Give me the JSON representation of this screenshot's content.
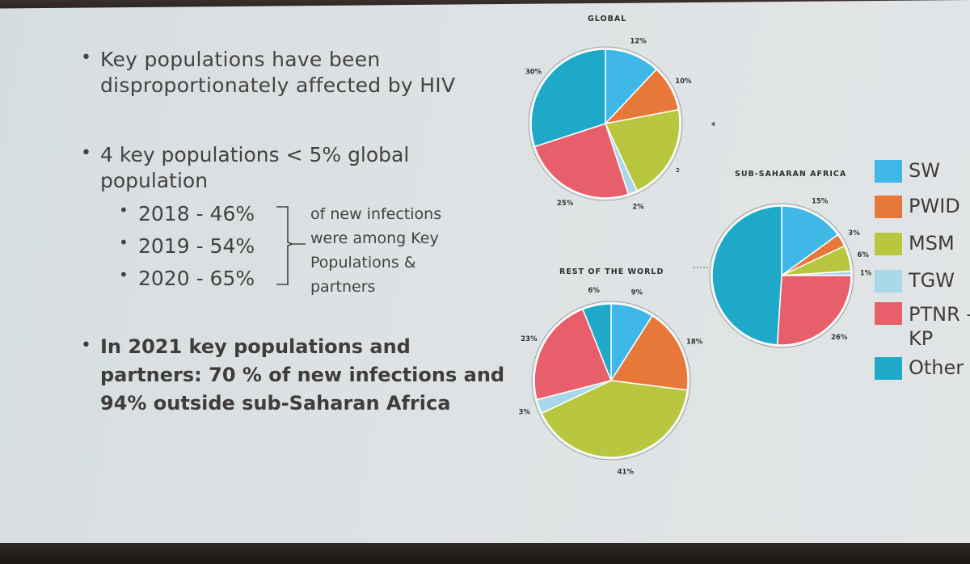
{
  "bullets": [
    {
      "lines": [
        "Key populations have been",
        "disproportionately affected by HIV"
      ]
    },
    {
      "lines": [
        "4 key populations < 5% global",
        "population"
      ]
    },
    {
      "lines": [
        "In 2021 key populations and",
        "partners: 70 % of new infections and",
        "94% outside sub-Saharan Africa"
      ]
    }
  ],
  "sub_bullets": [
    "2018 - 46%",
    "2019 - 54%",
    "2020 - 65%"
  ],
  "brace_text": [
    "of new infections",
    "were among Key",
    "Populations &",
    "partners"
  ],
  "legend": [
    {
      "label": "SW",
      "color": "#3fb8e8"
    },
    {
      "label": "PWID",
      "color": "#e8773a"
    },
    {
      "label": "MSM",
      "color": "#b9c63f"
    },
    {
      "label": "TGW",
      "color": "#a9d8e8"
    },
    {
      "label": "PTNR –\nKP",
      "color": "#e85f6c"
    },
    {
      "label": "Other",
      "color": "#1fa9c9"
    }
  ],
  "chart_data": [
    {
      "type": "pie",
      "title": "GLOBAL",
      "labels": [
        "SW",
        "PWID",
        "MSM",
        "TGW",
        "PTNR – KP",
        "Other"
      ],
      "values": [
        12,
        10,
        21,
        2,
        25,
        30
      ],
      "data_labels": [
        "12%",
        "10%",
        "",
        "2%",
        "25%",
        "30%"
      ],
      "stray_marks": [
        "4",
        "2"
      ]
    },
    {
      "type": "pie",
      "title": "SUB-SAHARAN AFRICA",
      "labels": [
        "SW",
        "PWID",
        "MSM",
        "TGW",
        "PTNR – KP",
        "Other"
      ],
      "values": [
        15,
        3,
        6,
        1,
        26,
        49
      ],
      "data_labels": [
        "15%",
        "3%",
        "6%",
        "1%",
        "26%",
        ""
      ]
    },
    {
      "type": "pie",
      "title": "REST OF THE WORLD",
      "labels": [
        "SW",
        "PWID",
        "MSM",
        "TGW",
        "PTNR – KP",
        "Other"
      ],
      "values": [
        9,
        18,
        41,
        3,
        23,
        6
      ],
      "data_labels": [
        "9%",
        "18%",
        "41%",
        "3%",
        "23%",
        "6%"
      ]
    }
  ]
}
